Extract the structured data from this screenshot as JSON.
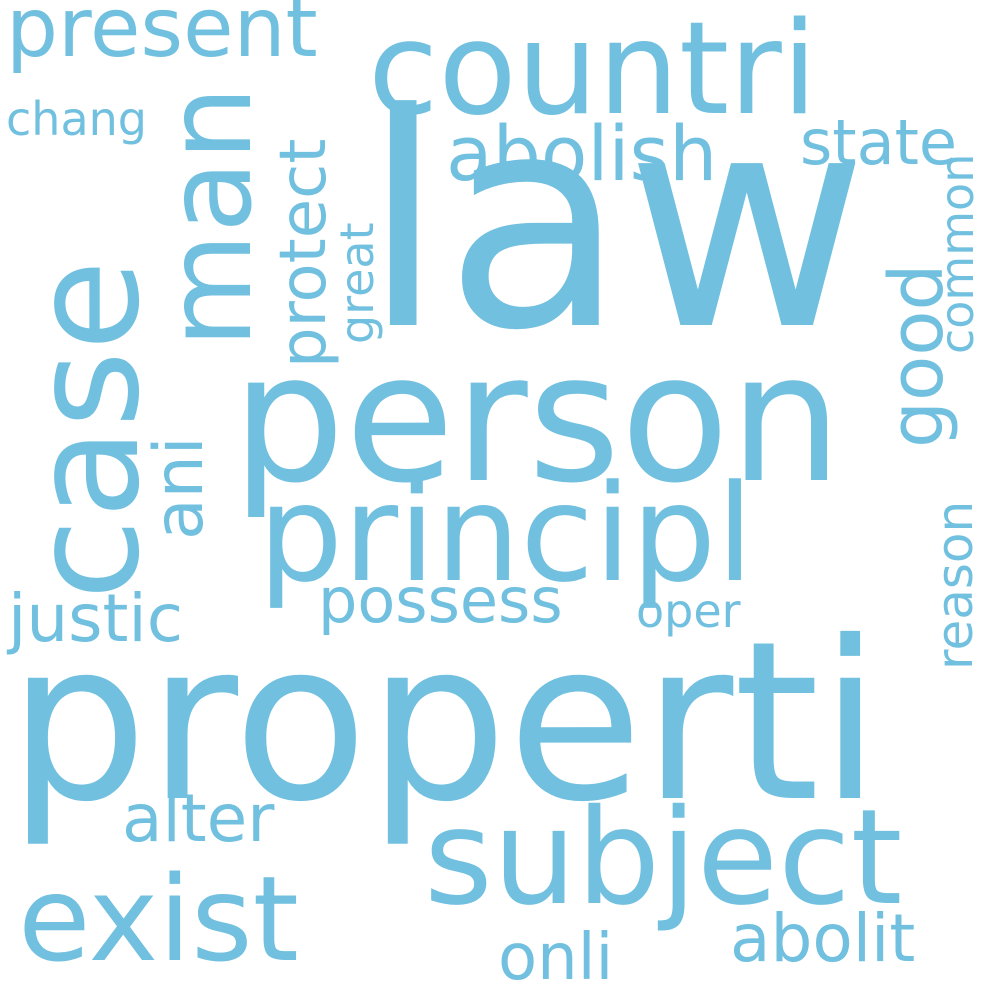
{
  "color": "#71c0df",
  "words": {
    "law": "law",
    "properti": "properti",
    "person": "person",
    "case": "case",
    "principl": "principl",
    "countri": "countri",
    "subject": "subject",
    "exist": "exist",
    "man": "man",
    "present": "present",
    "abolish": "abolish",
    "possess": "possess",
    "justic": "justic",
    "alter": "alter",
    "abolit": "abolit",
    "onli": "onli",
    "state": "state",
    "chang": "chang",
    "oper": "oper",
    "protect": "protect",
    "good": "good",
    "ani": "ani",
    "reason": "reason",
    "common": "common",
    "great": "great"
  }
}
